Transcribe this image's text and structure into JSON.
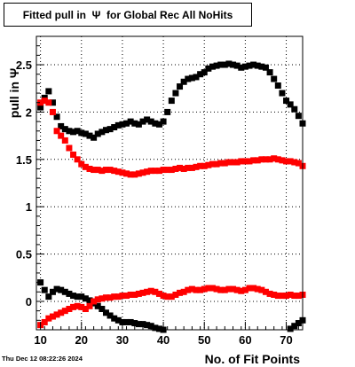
{
  "title": "Fitted pull in  Ψ  for Global Rec All NoHits",
  "timestamp": "Thu Dec 12 08:22:26 2024",
  "colors": {
    "series_black": "#000000",
    "series_red": "#ff0000",
    "grid": "#000000",
    "frame": "#000000"
  },
  "chart_data": {
    "type": "scatter",
    "title": "Fitted pull in  Ψ  for Global Rec All NoHits",
    "xlabel": "No. of Fit Points",
    "ylabel": "pull in  Ψ",
    "xlim": [
      9,
      74
    ],
    "ylim": [
      -0.3,
      2.8
    ],
    "xticks": [
      "10",
      "20",
      "30",
      "40",
      "50",
      "60",
      "70"
    ],
    "yticks": [
      "0",
      "0.5",
      "1",
      "1.5",
      "2",
      "2.5"
    ],
    "grid": true,
    "series": [
      {
        "color": "#000000",
        "marker": "square",
        "x": [
          10,
          11,
          12,
          13,
          14,
          15,
          16,
          17,
          18,
          19,
          20,
          21,
          22,
          23,
          24,
          25,
          26,
          27,
          28,
          29,
          30,
          31,
          32,
          33,
          34,
          35,
          36,
          37,
          38,
          39,
          40,
          41,
          42,
          43,
          44,
          45,
          46,
          47,
          48,
          49,
          50,
          51,
          52,
          53,
          54,
          55,
          56,
          57,
          58,
          59,
          60,
          61,
          62,
          63,
          64,
          65,
          66,
          67,
          68,
          69,
          70,
          71,
          72,
          73,
          74
        ],
        "y": [
          2.05,
          2.15,
          2.22,
          2.1,
          1.95,
          1.85,
          1.82,
          1.8,
          1.79,
          1.8,
          1.78,
          1.77,
          1.75,
          1.73,
          1.77,
          1.79,
          1.81,
          1.82,
          1.84,
          1.86,
          1.87,
          1.88,
          1.9,
          1.88,
          1.87,
          1.9,
          1.92,
          1.9,
          1.88,
          1.87,
          1.9,
          2.0,
          2.12,
          2.2,
          2.27,
          2.32,
          2.35,
          2.36,
          2.37,
          2.4,
          2.42,
          2.46,
          2.48,
          2.49,
          2.5,
          2.5,
          2.51,
          2.5,
          2.49,
          2.47,
          2.48,
          2.49,
          2.5,
          2.49,
          2.48,
          2.47,
          2.42,
          2.35,
          2.28,
          2.2,
          2.12,
          2.08,
          2.03,
          1.96,
          1.88
        ]
      },
      {
        "color": "#ff0000",
        "marker": "square",
        "x": [
          10,
          11,
          12,
          13,
          14,
          15,
          16,
          17,
          18,
          19,
          20,
          21,
          22,
          23,
          24,
          25,
          26,
          27,
          28,
          29,
          30,
          31,
          32,
          33,
          34,
          35,
          36,
          37,
          38,
          39,
          40,
          41,
          42,
          43,
          44,
          45,
          46,
          47,
          48,
          49,
          50,
          51,
          52,
          53,
          54,
          55,
          56,
          57,
          58,
          59,
          60,
          61,
          62,
          63,
          64,
          65,
          66,
          67,
          68,
          69,
          70,
          71,
          72,
          73,
          74
        ],
        "y": [
          2.1,
          2.12,
          2.1,
          2.0,
          1.8,
          1.75,
          1.7,
          1.62,
          1.55,
          1.5,
          1.45,
          1.42,
          1.4,
          1.39,
          1.39,
          1.38,
          1.39,
          1.39,
          1.38,
          1.37,
          1.36,
          1.35,
          1.34,
          1.34,
          1.35,
          1.36,
          1.37,
          1.38,
          1.38,
          1.38,
          1.39,
          1.39,
          1.39,
          1.4,
          1.41,
          1.4,
          1.41,
          1.41,
          1.42,
          1.43,
          1.43,
          1.44,
          1.45,
          1.45,
          1.46,
          1.46,
          1.47,
          1.47,
          1.47,
          1.48,
          1.48,
          1.48,
          1.49,
          1.49,
          1.5,
          1.5,
          1.5,
          1.51,
          1.5,
          1.49,
          1.48,
          1.48,
          1.47,
          1.46,
          1.43
        ]
      },
      {
        "color": "#000000",
        "marker": "square",
        "x": [
          10,
          11,
          12,
          13,
          14,
          15,
          16,
          17,
          18,
          19,
          20,
          21,
          22,
          23,
          24,
          25,
          26,
          27,
          28,
          29,
          30,
          31,
          32,
          33,
          34,
          35,
          36,
          37,
          38,
          39,
          40
        ],
        "y": [
          0.2,
          0.12,
          0.05,
          0.1,
          0.13,
          0.12,
          0.1,
          0.08,
          0.06,
          0.05,
          0.05,
          0.03,
          0.01,
          -0.02,
          -0.05,
          -0.08,
          -0.12,
          -0.15,
          -0.18,
          -0.2,
          -0.22,
          -0.22,
          -0.22,
          -0.23,
          -0.24,
          -0.24,
          -0.25,
          -0.26,
          -0.28,
          -0.29,
          -0.3
        ]
      },
      {
        "color": "#000000",
        "marker": "square",
        "x": [
          71,
          72,
          73,
          74
        ],
        "y": [
          -0.29,
          -0.26,
          -0.23,
          -0.2
        ]
      },
      {
        "color": "#ff0000",
        "marker": "square",
        "x": [
          10,
          11,
          12,
          13,
          14,
          15,
          16,
          17,
          18,
          19,
          20,
          21,
          22,
          23,
          24,
          25,
          26,
          27,
          28,
          29,
          30,
          31,
          32,
          33,
          34,
          35,
          36,
          37,
          38,
          39,
          40,
          41,
          42,
          43,
          44,
          45,
          46,
          47,
          48,
          49,
          50,
          51,
          52,
          53,
          54,
          55,
          56,
          57,
          58,
          59,
          60,
          61,
          62,
          63,
          64,
          65,
          66,
          67,
          68,
          69,
          70,
          71,
          72,
          73,
          74
        ],
        "y": [
          -0.25,
          -0.22,
          -0.18,
          -0.16,
          -0.14,
          -0.12,
          -0.1,
          -0.08,
          -0.06,
          -0.05,
          -0.06,
          -0.08,
          -0.05,
          0.0,
          0.02,
          0.03,
          0.04,
          0.04,
          0.05,
          0.05,
          0.06,
          0.06,
          0.07,
          0.07,
          0.08,
          0.09,
          0.1,
          0.11,
          0.1,
          0.08,
          0.06,
          0.05,
          0.05,
          0.07,
          0.09,
          0.1,
          0.12,
          0.13,
          0.12,
          0.12,
          0.13,
          0.14,
          0.14,
          0.13,
          0.12,
          0.12,
          0.13,
          0.13,
          0.12,
          0.11,
          0.12,
          0.14,
          0.14,
          0.13,
          0.12,
          0.1,
          0.08,
          0.07,
          0.06,
          0.06,
          0.06,
          0.07,
          0.06,
          0.06,
          0.07
        ]
      }
    ]
  }
}
